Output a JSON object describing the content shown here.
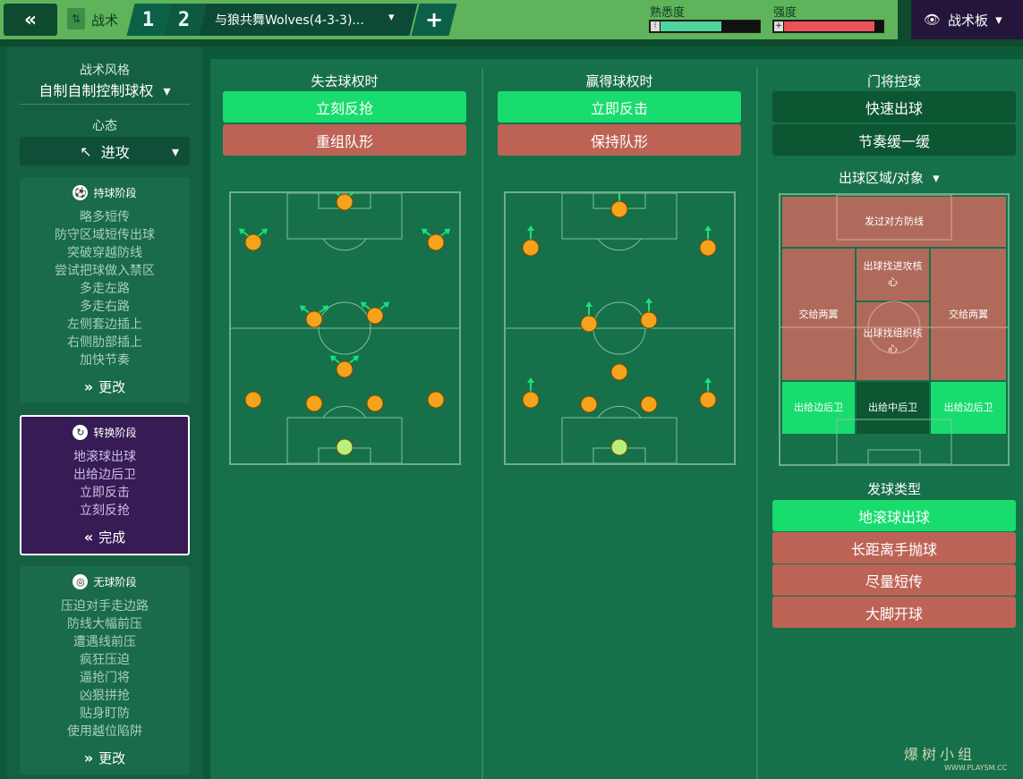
{
  "topbar": {
    "back_icon": "double-chevron-left",
    "tactic_label": "战术",
    "slot1": "1",
    "slot2": "2",
    "tactic_name": "与狼共舞Wolves(4-3-3)...",
    "add_label": "+",
    "familiarity_label": "熟悉度",
    "familiarity_value": 0.62,
    "intensity_label": "强度",
    "intensity_value": 0.92,
    "board_label": "战术板",
    "colors": {
      "familiarity": "#4fd59c",
      "intensity": "#e8535a"
    }
  },
  "sidebar": {
    "style_title": "战术风格",
    "style_value": "自制自制控制球权",
    "mentality_title": "心态",
    "mentality_value": "进攻",
    "phases": [
      {
        "title": "持球阶段",
        "items": [
          "略多短传",
          "防守区域短传出球",
          "突破穿越防线",
          "尝试把球做入禁区",
          "多走左路",
          "多走右路",
          "左侧套边插上",
          "右侧肋部插上",
          "加快节奏"
        ],
        "button": "更改"
      },
      {
        "title": "转换阶段",
        "items": [
          "地滚球出球",
          "出给边后卫",
          "立即反击",
          "立刻反抢"
        ],
        "button": "完成"
      },
      {
        "title": "无球阶段",
        "items": [
          "压迫对手走边路",
          "防线大幅前压",
          "遭遇线前压",
          "疯狂压迫",
          "逼抢门将",
          "凶狠拼抢",
          "贴身盯防",
          "使用越位陷阱"
        ],
        "button": "更改"
      }
    ]
  },
  "main": {
    "lose_title": "失去球权时",
    "lose_options": [
      "立刻反抢",
      "重组队形"
    ],
    "win_title": "赢得球权时",
    "win_options": [
      "立即反击",
      "保持队形"
    ],
    "gk_title": "门将控球",
    "gk_options": [
      "快速出球",
      "节奏缓一缓"
    ],
    "zone_dropdown": "出球区域/对象",
    "zones": {
      "top": "发过对方防线",
      "left": "交给两翼",
      "right": "交给两翼",
      "center_top": "出球找进攻核心",
      "center_mid": "出球找组织核心",
      "bottom_left": "出给边后卫",
      "bottom_center": "出给中后卫",
      "bottom_right": "出给边后卫"
    },
    "kick_title": "发球类型",
    "kick_options": [
      "地滚球出球",
      "长距离手抛球",
      "尽量短传",
      "大脚开球"
    ]
  },
  "watermark": {
    "cn": "爆树小组",
    "en": "WWW.PLAYSM.CC"
  }
}
